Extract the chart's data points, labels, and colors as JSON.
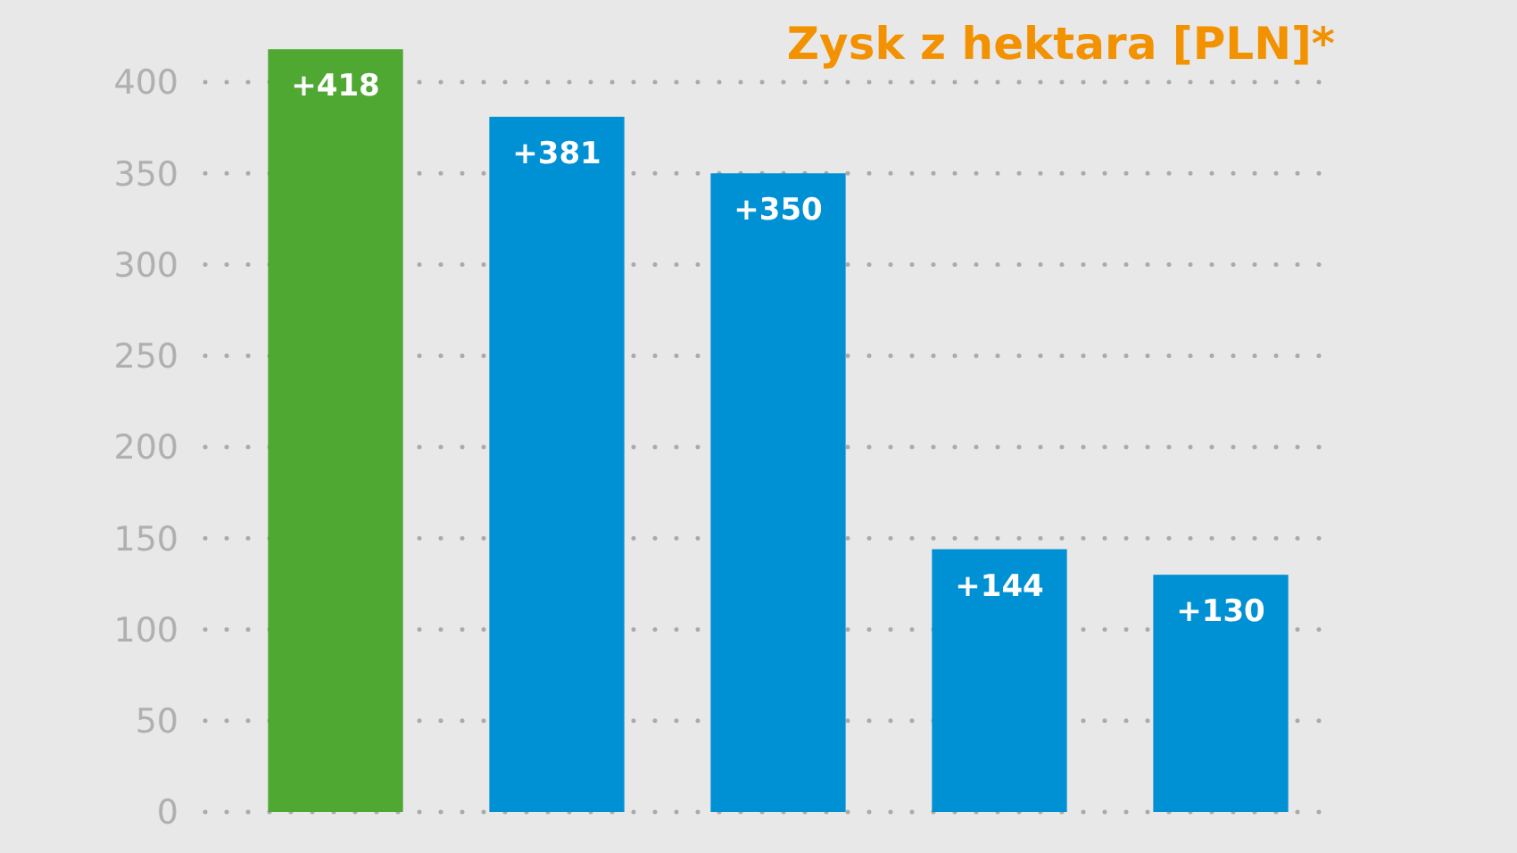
{
  "chart_data": {
    "type": "bar",
    "title": "Zysk z hektara [PLN]*",
    "categories": [
      null,
      null,
      null,
      null,
      null
    ],
    "values": [
      418,
      381,
      350,
      144,
      130
    ],
    "colors": [
      "#4ea832",
      "#0090d4",
      "#0090d4",
      "#0090d4",
      "#0090d4"
    ],
    "value_labels": [
      "+418",
      "+381",
      "+350",
      "+144",
      "+130"
    ],
    "ylim": [
      0,
      420
    ],
    "yticks": [
      0,
      50,
      100,
      150,
      200,
      250,
      300,
      350,
      400
    ],
    "grid": "y"
  }
}
